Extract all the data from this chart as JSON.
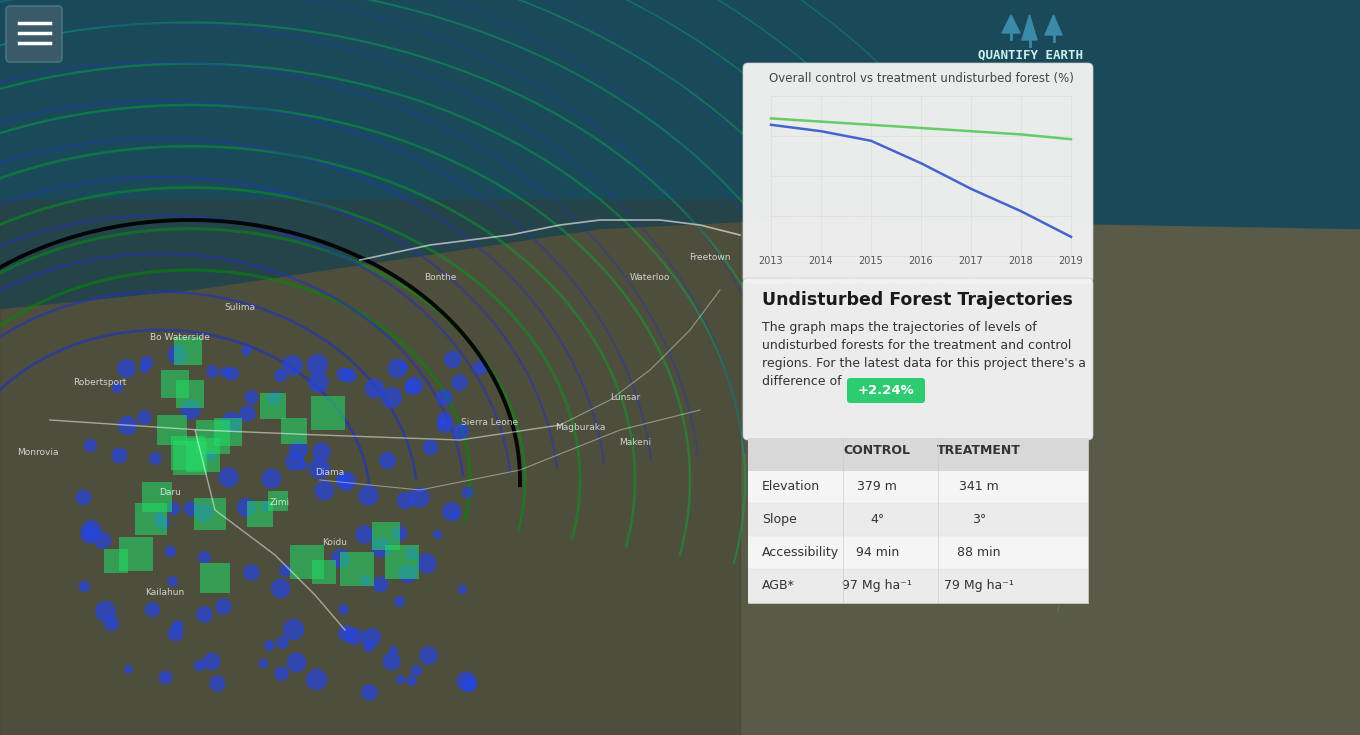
{
  "bg_color": "#2d4a52",
  "panel_bg": "#f0f0f0",
  "title": "Overall control vs treatment undisturbed forest (%)",
  "section_title": "Undisturbed Forest Trajectories",
  "badge_text": "+2.24%",
  "badge_color": "#2ecc71",
  "badge_text_color": "#ffffff",
  "years": [
    2013,
    2014,
    2015,
    2016,
    2017,
    2018,
    2019
  ],
  "control_color": "#4466cc",
  "treatment_color": "#66cc66",
  "table_headers": [
    "",
    "CONTROL",
    "TREATMENT"
  ],
  "table_rows": [
    [
      "Elevation",
      "379 m",
      "341 m"
    ],
    [
      "Slope",
      "4°",
      "3°"
    ],
    [
      "Accessibility",
      "94 min",
      "88 min"
    ],
    [
      "AGB*",
      "97 Mg ha⁻¹",
      "79 Mg ha⁻¹"
    ]
  ],
  "table_header_bg": "#d8d8d8",
  "table_row_bg1": "#f5f5f5",
  "table_row_bg2": "#ebebeb",
  "logo_text": "QUANTIFY EARTH",
  "main_map_bg": "#2a5060"
}
